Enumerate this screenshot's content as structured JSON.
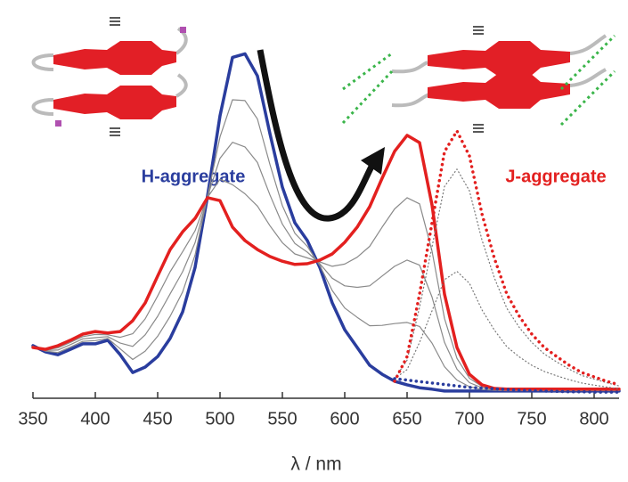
{
  "chart_data": {
    "type": "line",
    "x": [
      350,
      360,
      370,
      380,
      390,
      400,
      410,
      420,
      430,
      440,
      450,
      460,
      470,
      480,
      490,
      500,
      510,
      520,
      530,
      540,
      550,
      560,
      570,
      580,
      590,
      600,
      610,
      620,
      630,
      640,
      650,
      660,
      670,
      680,
      690,
      700,
      710,
      720,
      730,
      740,
      750,
      760,
      770,
      780,
      790,
      800,
      810,
      820
    ],
    "xlim": [
      350,
      820
    ],
    "xticks": [
      350,
      400,
      450,
      500,
      550,
      600,
      650,
      700,
      750,
      800
    ],
    "ylim": [
      0,
      1
    ],
    "xlabel": "λ / nm",
    "series": [
      {
        "name": "H-aggregate",
        "color": "#2a3d9e",
        "style": "solid",
        "width": 3.5,
        "values": [
          0.145,
          0.128,
          0.12,
          0.135,
          0.15,
          0.15,
          0.16,
          0.12,
          0.071,
          0.086,
          0.115,
          0.165,
          0.238,
          0.361,
          0.558,
          0.779,
          0.94,
          0.95,
          0.889,
          0.73,
          0.582,
          0.484,
          0.435,
          0.361,
          0.263,
          0.189,
          0.14,
          0.091,
          0.066,
          0.047,
          0.037,
          0.029,
          0.025,
          0.02,
          0.02,
          0.02,
          0.02,
          0.02,
          0.02,
          0.02,
          0.02,
          0.02,
          0.02,
          0.02,
          0.02,
          0.02,
          0.02,
          0.02
        ]
      },
      {
        "color": "#8a8a8a",
        "style": "solid",
        "width": 1.2,
        "values": [
          0.144,
          0.13,
          0.126,
          0.141,
          0.157,
          0.159,
          0.165,
          0.136,
          0.107,
          0.13,
          0.171,
          0.226,
          0.293,
          0.395,
          0.557,
          0.721,
          0.823,
          0.821,
          0.77,
          0.645,
          0.531,
          0.455,
          0.419,
          0.366,
          0.297,
          0.249,
          0.223,
          0.2,
          0.201,
          0.206,
          0.209,
          0.198,
          0.152,
          0.087,
          0.05,
          0.032,
          0.024,
          0.022,
          0.021,
          0.021,
          0.021,
          0.021,
          0.021,
          0.021,
          0.021,
          0.021,
          0.021,
          0.021
        ]
      },
      {
        "color": "#8a8a8a",
        "style": "solid",
        "width": 1.2,
        "values": [
          0.143,
          0.132,
          0.133,
          0.148,
          0.164,
          0.167,
          0.17,
          0.152,
          0.143,
          0.175,
          0.226,
          0.288,
          0.349,
          0.429,
          0.556,
          0.662,
          0.706,
          0.693,
          0.65,
          0.561,
          0.48,
          0.427,
          0.403,
          0.371,
          0.331,
          0.31,
          0.306,
          0.31,
          0.337,
          0.364,
          0.381,
          0.367,
          0.279,
          0.154,
          0.08,
          0.043,
          0.029,
          0.024,
          0.023,
          0.023,
          0.023,
          0.023,
          0.023,
          0.023,
          0.023,
          0.023,
          0.023,
          0.023
        ]
      },
      {
        "color": "#8a8a8a",
        "style": "solid",
        "width": 1.2,
        "values": [
          0.141,
          0.133,
          0.139,
          0.154,
          0.17,
          0.176,
          0.175,
          0.168,
          0.178,
          0.219,
          0.282,
          0.349,
          0.404,
          0.462,
          0.554,
          0.604,
          0.589,
          0.564,
          0.53,
          0.476,
          0.429,
          0.398,
          0.387,
          0.376,
          0.364,
          0.37,
          0.389,
          0.419,
          0.472,
          0.522,
          0.553,
          0.536,
          0.406,
          0.22,
          0.11,
          0.055,
          0.033,
          0.026,
          0.024,
          0.024,
          0.024,
          0.024,
          0.024,
          0.024,
          0.024,
          0.024,
          0.024,
          0.024
        ]
      },
      {
        "name": "J-aggregate",
        "color": "#e3201f",
        "style": "solid",
        "width": 3.5,
        "values": [
          0.14,
          0.135,
          0.145,
          0.16,
          0.177,
          0.184,
          0.18,
          0.184,
          0.214,
          0.263,
          0.337,
          0.41,
          0.459,
          0.496,
          0.553,
          0.545,
          0.472,
          0.435,
          0.41,
          0.391,
          0.378,
          0.369,
          0.371,
          0.381,
          0.398,
          0.43,
          0.472,
          0.528,
          0.607,
          0.681,
          0.725,
          0.705,
          0.533,
          0.287,
          0.14,
          0.066,
          0.037,
          0.027,
          0.025,
          0.025,
          0.025,
          0.025,
          0.025,
          0.025,
          0.025,
          0.025,
          0.025,
          0.025
        ]
      },
      {
        "color": "#777777",
        "style": "dotted",
        "width": 1.2,
        "values": [
          null,
          null,
          null,
          null,
          null,
          null,
          null,
          null,
          null,
          null,
          null,
          null,
          null,
          null,
          null,
          null,
          null,
          null,
          null,
          null,
          null,
          null,
          null,
          null,
          null,
          null,
          null,
          null,
          null,
          0.054,
          0.079,
          0.154,
          0.241,
          0.327,
          0.35,
          0.317,
          0.244,
          0.188,
          0.142,
          0.114,
          0.091,
          0.074,
          0.062,
          0.051,
          0.042,
          0.036,
          0.031,
          0.026
        ]
      },
      {
        "color": "#777777",
        "style": "dotted",
        "width": 1.2,
        "values": [
          null,
          null,
          null,
          null,
          null,
          null,
          null,
          null,
          null,
          null,
          null,
          null,
          null,
          null,
          null,
          null,
          null,
          null,
          null,
          null,
          null,
          null,
          null,
          null,
          null,
          null,
          null,
          null,
          null,
          0.054,
          0.105,
          0.251,
          0.418,
          0.584,
          0.632,
          0.572,
          0.437,
          0.332,
          0.248,
          0.195,
          0.154,
          0.122,
          0.1,
          0.08,
          0.063,
          0.053,
          0.043,
          0.034
        ]
      },
      {
        "color": "#2a3d9e",
        "style": "dotted",
        "width": 3.5,
        "values": [
          null,
          null,
          null,
          null,
          null,
          null,
          null,
          null,
          null,
          null,
          null,
          null,
          null,
          null,
          null,
          null,
          null,
          null,
          null,
          null,
          null,
          null,
          null,
          null,
          null,
          null,
          null,
          null,
          null,
          0.054,
          0.05,
          0.046,
          0.042,
          0.038,
          0.034,
          0.03,
          0.028,
          0.026,
          0.024,
          0.022,
          0.021,
          0.02,
          0.019,
          0.018,
          0.018,
          0.017,
          0.017,
          0.017
        ]
      },
      {
        "color": "#e3201f",
        "style": "dotted",
        "width": 3.5,
        "values": [
          null,
          null,
          null,
          null,
          null,
          null,
          null,
          null,
          null,
          null,
          null,
          null,
          null,
          null,
          null,
          null,
          null,
          null,
          null,
          null,
          null,
          null,
          null,
          null,
          null,
          null,
          null,
          null,
          null,
          0.047,
          0.115,
          0.287,
          0.484,
          0.68,
          0.737,
          0.668,
          0.509,
          0.386,
          0.287,
          0.226,
          0.177,
          0.14,
          0.115,
          0.091,
          0.071,
          0.059,
          0.047,
          0.037
        ]
      }
    ]
  }
}
